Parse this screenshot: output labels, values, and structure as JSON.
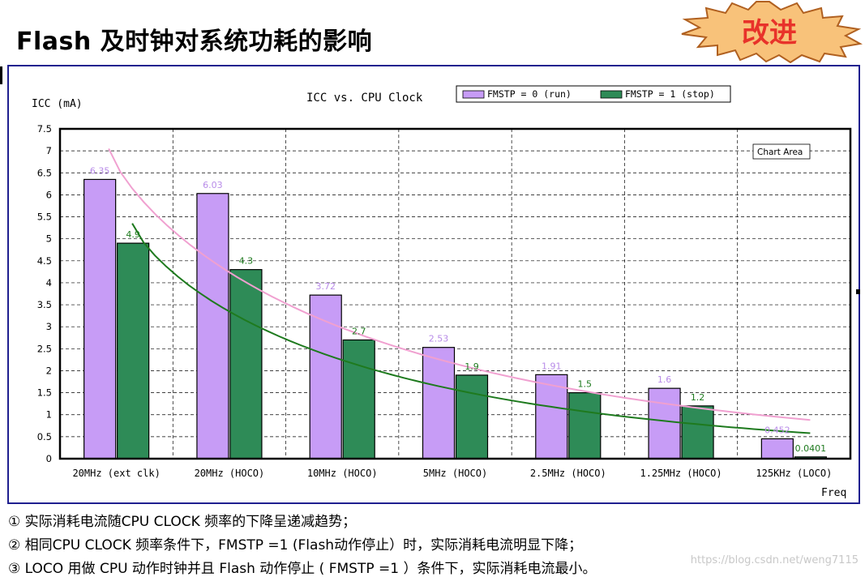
{
  "page": {
    "title": "Flash 及时钟对系统功耗的影响",
    "badge_label": "改进",
    "notes": [
      "① 实际消耗电流随CPU CLOCK 频率的下降呈递减趋势；",
      "② 相同CPU CLOCK 频率条件下，FMSTP =1 (Flash动作停止）时，实际消耗电流明显下降；",
      "③ LOCO 用做 CPU 动作时钟并且 Flash 动作停止 ( FMSTP =1 ）条件下，实际消耗电流最小。"
    ],
    "watermark": "https://blog.csdn.net/weng7115"
  },
  "chart_data": {
    "type": "bar",
    "title": "ICC vs. CPU Clock",
    "ylabel": "ICC (mA)",
    "xlabel": "Freq",
    "chart_area_label": "Chart Area",
    "categories": [
      "20MHz (ext clk)",
      "20MHz (HOCO)",
      "10MHz (HOCO)",
      "5MHz (HOCO)",
      "2.5MHz (HOCO)",
      "1.25MHz (HOCO)",
      "125KHz (LOCO)"
    ],
    "ylim": [
      0,
      7.5
    ],
    "yticks": [
      "0",
      "0.5",
      "1",
      "1.5",
      "2",
      "2.5",
      "3",
      "3.5",
      "4",
      "4.5",
      "5",
      "5.5",
      "6",
      "6.5",
      "7",
      "7.5"
    ],
    "grid": true,
    "legend_position": "top-right",
    "series": [
      {
        "name": "FMSTP = 0 (run)",
        "values": [
          6.35,
          6.03,
          3.72,
          2.53,
          1.91,
          1.6,
          0.452
        ],
        "labels": [
          "6.35",
          "6.03",
          "3.72",
          "2.53",
          "1.91",
          "1.6",
          "0.452"
        ],
        "color": "#c79cf6",
        "trend_color": "#f0a0d0"
      },
      {
        "name": "FMSTP = 1 (stop)",
        "values": [
          4.9,
          4.3,
          2.7,
          1.9,
          1.5,
          1.2,
          0.0401
        ],
        "labels": [
          "4.9",
          "4.3",
          "2.7",
          "1.9",
          "1.5",
          "1.2",
          "0.0401"
        ],
        "color": "#2e8b57",
        "trend_color": "#1e7a1e"
      }
    ]
  }
}
